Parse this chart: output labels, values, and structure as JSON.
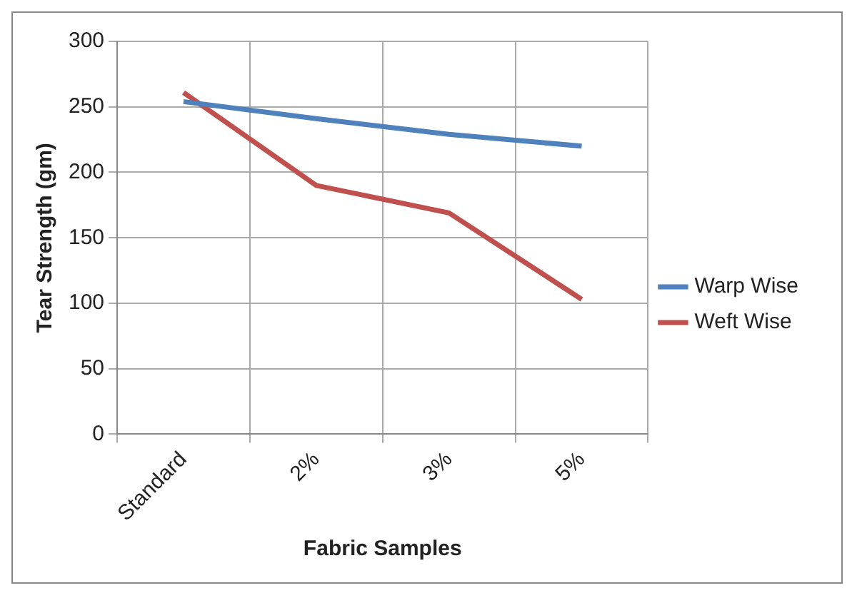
{
  "chart_data": {
    "type": "line",
    "xlabel": "Fabric Samples",
    "ylabel": "Tear Strength (gm)",
    "categories": [
      "Standard",
      "2%",
      "3%",
      "5%"
    ],
    "series": [
      {
        "name": "Warp Wise",
        "color": "#4f81bd",
        "values": [
          254,
          241,
          229,
          220
        ]
      },
      {
        "name": "Weft Wise",
        "color": "#c0504d",
        "values": [
          261,
          190,
          169,
          103
        ]
      }
    ],
    "ylim": [
      0,
      300
    ],
    "yticks": [
      0,
      50,
      100,
      150,
      200,
      250,
      300
    ],
    "grid": true,
    "legend": "right",
    "marker": "none"
  }
}
